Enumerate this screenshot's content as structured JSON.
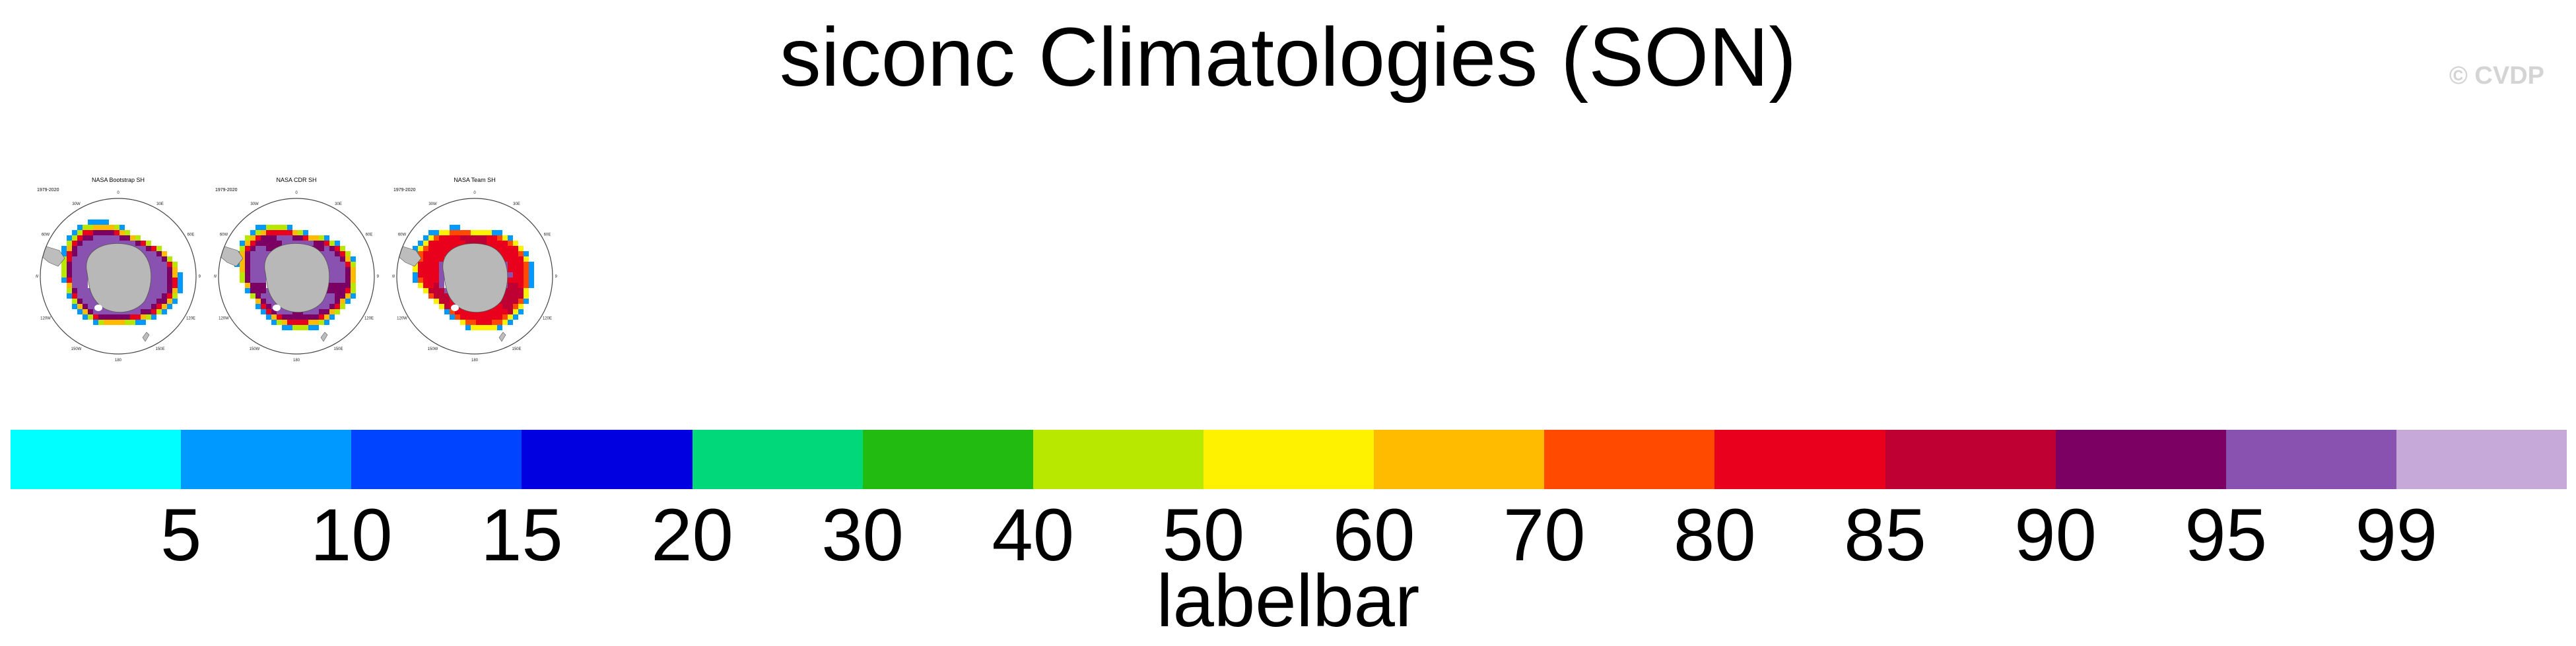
{
  "title": "siconc Climatologies (SON)",
  "copyright": "© CVDP",
  "panels": [
    {
      "title": "NASA Bootstrap SH",
      "years": "1979-2020",
      "style": "bootstrap"
    },
    {
      "title": "NASA CDR SH",
      "years": "1979-2020",
      "style": "cdr"
    },
    {
      "title": "NASA Team SH",
      "years": "1979-2020",
      "style": "team"
    }
  ],
  "map_labels": {
    "lon_0": "0",
    "lon_30e": "30E",
    "lon_60e": "60E",
    "lon_90e": "90E",
    "lon_120e": "120E",
    "lon_150e": "150E",
    "lon_180": "180",
    "lon_150w": "150W",
    "lon_120w": "120W",
    "lon_90w": "90W",
    "lon_60w": "60W",
    "lon_30w": "30W"
  },
  "colorbar": {
    "title": "labelbar",
    "colors": [
      "#00ffff",
      "#0099ff",
      "#0044ff",
      "#0000e0",
      "#00d87a",
      "#22bb11",
      "#b9e800",
      "#fff200",
      "#ffbb00",
      "#ff4a00",
      "#e8001c",
      "#bf0032",
      "#7c0063",
      "#8a52b0",
      "#c6a9d8"
    ],
    "levels": [
      "5",
      "10",
      "15",
      "20",
      "30",
      "40",
      "50",
      "60",
      "70",
      "80",
      "85",
      "90",
      "95",
      "99"
    ]
  }
}
